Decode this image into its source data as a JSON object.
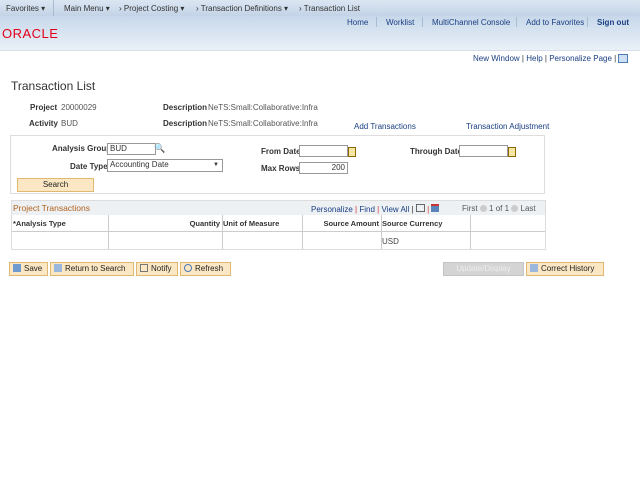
{
  "breadcrumb": {
    "favorites": "Favorites",
    "main_menu": "Main Menu",
    "project_costing": "Project Costing",
    "transaction_definitions": "Transaction Definitions",
    "current": "Transaction List"
  },
  "header": {
    "links": [
      "Home",
      "Worklist",
      "MultiChannel Console",
      "Add to Favorites",
      "Sign out"
    ],
    "logo": "ORACLE",
    "brand_color": "#e2001a"
  },
  "page_links": {
    "new_window": "New Window",
    "help": "Help",
    "personalize_page": "Personalize Page"
  },
  "page_title": "Transaction List",
  "info": {
    "project_label": "Project",
    "project": "20000029",
    "activity_label": "Activity",
    "activity": "BUD",
    "desc_label": "Description",
    "desc1": "NeTS:Small:Collaborative:Infra",
    "desc2": "NeTS:Small:Collaborative:Infra",
    "add_transactions": "Add Transactions",
    "transaction_adjustment": "Transaction Adjustment"
  },
  "search": {
    "analysis_group_label": "Analysis Group",
    "analysis_group": "BUD",
    "date_type_label": "Date Type",
    "date_type": "Accounting Date",
    "from_date_label": "From Date",
    "from_date": "",
    "through_date_label": "Through Date",
    "through_date": "",
    "max_rows_label": "Max Rows",
    "max_rows": "200",
    "search_button": "Search"
  },
  "grid": {
    "title": "Project Transactions",
    "personalize": "Personalize",
    "find": "Find",
    "view_all": "View All",
    "first": "First",
    "pager": "1 of 1",
    "last": "Last",
    "columns": [
      "*Analysis Type",
      "Quantity",
      "Unit of Measure",
      "Source Amount",
      "Source Currency"
    ],
    "rows": [
      [
        "",
        "",
        "",
        "",
        "USD"
      ]
    ]
  },
  "buttons": {
    "save": "Save",
    "return_to_search": "Return to Search",
    "notify": "Notify",
    "refresh": "Refresh",
    "update_display": "Update/Display",
    "correct_history": "Correct History"
  }
}
